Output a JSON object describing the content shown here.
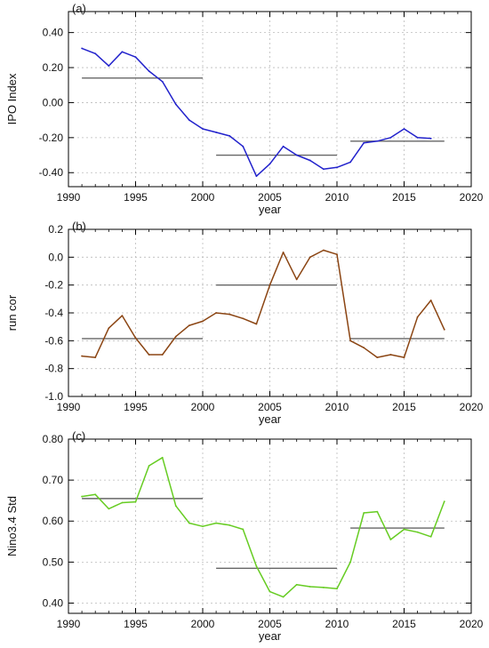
{
  "chart_data": [
    {
      "type": "line",
      "panel_label": "(a)",
      "title": "",
      "xlabel": "year",
      "ylabel": "IPO Index",
      "xlim": [
        1990,
        2020
      ],
      "ylim": [
        -0.48,
        0.52
      ],
      "xticks": [
        1990,
        1995,
        2000,
        2005,
        2010,
        2015,
        2020
      ],
      "yticks": [
        -0.4,
        -0.2,
        0.0,
        0.2,
        0.4
      ],
      "ytick_labels": [
        "-0.40",
        "-0.20",
        "0.00",
        "0.20",
        "0.40"
      ],
      "grid": true,
      "legend": "none",
      "color": "#2222cc",
      "series": [
        {
          "x": [
            1991,
            1992,
            1993,
            1994,
            1995,
            1996,
            1997,
            1998,
            1999,
            2000,
            2001,
            2002,
            2003,
            2004,
            2005,
            2006,
            2007,
            2008,
            2009,
            2010,
            2011,
            2012,
            2013,
            2014,
            2015,
            2016,
            2017
          ],
          "values": [
            0.31,
            0.28,
            0.21,
            0.29,
            0.26,
            0.18,
            0.12,
            -0.01,
            -0.1,
            -0.15,
            -0.17,
            -0.19,
            -0.25,
            -0.42,
            -0.35,
            -0.25,
            -0.3,
            -0.33,
            -0.38,
            -0.37,
            -0.34,
            -0.23,
            -0.22,
            -0.2,
            -0.15,
            -0.2,
            -0.205
          ]
        }
      ],
      "mean_lines": [
        {
          "x": [
            1991,
            2000
          ],
          "value": 0.14
        },
        {
          "x": [
            2001,
            2010
          ],
          "value": -0.3
        },
        {
          "x": [
            2011,
            2018
          ],
          "value": -0.22
        }
      ]
    },
    {
      "type": "line",
      "panel_label": "(b)",
      "title": "",
      "xlabel": "year",
      "ylabel": "run cor",
      "xlim": [
        1990,
        2020
      ],
      "ylim": [
        -1.0,
        0.2
      ],
      "xticks": [
        1990,
        1995,
        2000,
        2005,
        2010,
        2015,
        2020
      ],
      "yticks": [
        -1.0,
        -0.8,
        -0.6,
        -0.4,
        -0.2,
        0.0,
        0.2
      ],
      "ytick_labels": [
        "-1.0",
        "-0.8",
        "-0.6",
        "-0.4",
        "-0.2",
        "0.0",
        "0.2"
      ],
      "grid": true,
      "legend": "none",
      "color": "#8b4513",
      "series": [
        {
          "x": [
            1991,
            1992,
            1993,
            1994,
            1995,
            1996,
            1997,
            1998,
            1999,
            2000,
            2001,
            2002,
            2003,
            2004,
            2005,
            2006,
            2007,
            2008,
            2009,
            2010,
            2011,
            2012,
            2013,
            2014,
            2015,
            2016,
            2017,
            2018
          ],
          "values": [
            -0.71,
            -0.72,
            -0.51,
            -0.42,
            -0.58,
            -0.7,
            -0.7,
            -0.57,
            -0.49,
            -0.46,
            -0.4,
            -0.41,
            -0.44,
            -0.48,
            -0.2,
            0.035,
            -0.16,
            0.0,
            0.05,
            0.02,
            -0.6,
            -0.65,
            -0.72,
            -0.7,
            -0.72,
            -0.43,
            -0.31,
            -0.52
          ]
        }
      ],
      "mean_lines": [
        {
          "x": [
            1991,
            2000
          ],
          "value": -0.585
        },
        {
          "x": [
            2001,
            2010
          ],
          "value": -0.2
        },
        {
          "x": [
            2011,
            2018
          ],
          "value": -0.585
        }
      ]
    },
    {
      "type": "line",
      "panel_label": "(c)",
      "title": "",
      "xlabel": "year",
      "ylabel": "Nino3.4 Std",
      "xlim": [
        1990,
        2020
      ],
      "ylim": [
        0.375,
        0.8
      ],
      "xticks": [
        1990,
        1995,
        2000,
        2005,
        2010,
        2015,
        2020
      ],
      "yticks": [
        0.4,
        0.5,
        0.6,
        0.7,
        0.8
      ],
      "ytick_labels": [
        "0.40",
        "0.50",
        "0.60",
        "0.70",
        "0.80"
      ],
      "grid": true,
      "legend": "none",
      "color": "#66cc22",
      "series": [
        {
          "x": [
            1991,
            1992,
            1993,
            1994,
            1995,
            1996,
            1997,
            1998,
            1999,
            2000,
            2001,
            2002,
            2003,
            2004,
            2005,
            2006,
            2007,
            2008,
            2009,
            2010,
            2011,
            2012,
            2013,
            2014,
            2015,
            2016,
            2017,
            2018
          ],
          "values": [
            0.66,
            0.665,
            0.63,
            0.645,
            0.647,
            0.735,
            0.755,
            0.637,
            0.595,
            0.587,
            0.595,
            0.59,
            0.58,
            0.49,
            0.428,
            0.415,
            0.445,
            0.44,
            0.438,
            0.435,
            0.5,
            0.62,
            0.623,
            0.555,
            0.58,
            0.573,
            0.562,
            0.648
          ]
        }
      ],
      "mean_lines": [
        {
          "x": [
            1991,
            2000
          ],
          "value": 0.655
        },
        {
          "x": [
            2001,
            2010
          ],
          "value": 0.485
        },
        {
          "x": [
            2011,
            2018
          ],
          "value": 0.583
        }
      ]
    }
  ]
}
